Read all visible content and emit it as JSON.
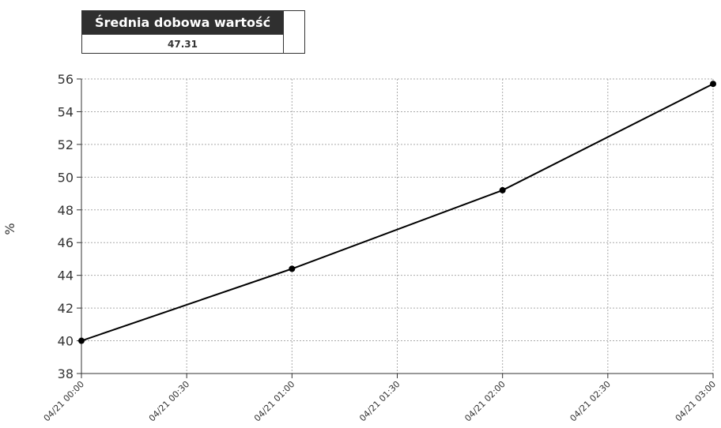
{
  "summary": {
    "title": "Średnia dobowa wartość",
    "value": "47.31"
  },
  "chart_data": {
    "type": "line",
    "ylabel": "%",
    "x": [
      "04/21 00:00",
      "04/21 01:00",
      "04/21 02:00",
      "04/21 03:00"
    ],
    "series": [
      {
        "name": null,
        "color": "#000000",
        "values": [
          40,
          44.4,
          49.2,
          55.7
        ]
      }
    ],
    "xlim": [
      "04/21 00:00",
      "04/21 03:00"
    ],
    "xticks": [
      "04/21 00:00",
      "04/21 00:30",
      "04/21 01:00",
      "04/21 01:30",
      "04/21 02:00",
      "04/21 02:30",
      "04/21 03:00"
    ],
    "ylim": [
      38,
      56
    ],
    "yticks": [
      38,
      40,
      42,
      44,
      46,
      48,
      50,
      52,
      54,
      56
    ],
    "grid": true
  }
}
